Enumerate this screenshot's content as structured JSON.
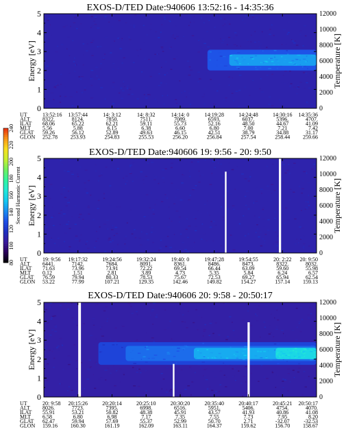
{
  "chart_data": [
    {
      "type": "heatmap",
      "title": "EXOS-D/TED   Date:940606  13:52:16 - 14:35:36",
      "ylabel": "Energy [eV]",
      "ylabel_right": "Temperature [K]",
      "ylim": [
        0,
        5
      ],
      "yticks": [
        "0",
        "1",
        "2",
        "3",
        "4",
        "5"
      ],
      "ylim_right": [
        0,
        12000
      ],
      "yticks_right": [
        "0",
        "2000",
        "4000",
        "6000",
        "8000",
        "10000",
        "12000"
      ],
      "background_level": 110,
      "gaps": [],
      "features": [
        {
          "t0": 0.6,
          "t1": 1.0,
          "e0": 2.0,
          "e1": 3.1,
          "level": 130
        },
        {
          "t0": 0.68,
          "t1": 1.0,
          "e0": 2.25,
          "e1": 2.85,
          "level": 145
        }
      ],
      "table": {
        "labels": [
          "UT",
          "ALT",
          "ILAT",
          "MLT",
          "GLAT",
          "GLON"
        ],
        "columns": [
          [
            "13:52:16",
            "8322.",
            "68.06",
            "5.56",
            "59.26",
            "252.78"
          ],
          [
            "13:57:44",
            "8124.",
            "65.22",
            "5.88",
            "56.12",
            "253.93"
          ],
          [
            "14: 3:12",
            "7850.",
            "62.21",
            "6.15",
            "52.89",
            "254.83"
          ],
          [
            "14: 8:32",
            "7511.",
            "59.11",
            "6.38",
            "49.63",
            "255.53"
          ],
          [
            "14:14: 0",
            "7089.",
            "55.73",
            "6.60",
            "46.15",
            "256.20"
          ],
          [
            "14:19:28",
            "6593.",
            "52.16",
            "6.80",
            "42.51",
            "256.84"
          ],
          [
            "14:24:48",
            "6037.",
            "48.50",
            "7.00",
            "38.79",
            "257.54"
          ],
          [
            "14:30:16",
            "5396.",
            "44.67",
            "7.21",
            "34.88",
            "258.44"
          ],
          [
            "14:35:36",
            "4707.",
            "41.09",
            "7.42",
            "31.17",
            "259.66"
          ]
        ]
      }
    },
    {
      "type": "heatmap",
      "title": "EXOS-D/TED   Date:940606  19: 9:56 - 20: 9:50",
      "ylabel": "Energy [eV]",
      "ylabel_right": "Temperature [K]",
      "ylim": [
        0,
        5
      ],
      "yticks": [
        "0",
        "1",
        "2",
        "3",
        "4",
        "5"
      ],
      "ylim_right": [
        0,
        12000
      ],
      "yticks_right": [
        "0",
        "2000",
        "4000",
        "6000",
        "8000",
        "10000",
        "12000"
      ],
      "background_level": 110,
      "gaps": [
        {
          "t": 0.664,
          "e_top": 4.3,
          "w": 0.006
        },
        {
          "t": 0.862,
          "e_top": 5.0,
          "w": 0.008
        }
      ],
      "features": [],
      "table": {
        "labels": [
          "UT",
          "ALT",
          "ILAT",
          "MLT",
          "GLAT",
          "GLON"
        ],
        "columns": [
          [
            "19: 9:56",
            "6441.",
            "71.63",
            "0.12",
            "76.59",
            "53.22"
          ],
          [
            "19:17:32",
            "7142.",
            "73.96",
            "1.51",
            "79.94",
            "77.99"
          ],
          [
            "19:24:56",
            "7684.",
            "73.91",
            "2.81",
            "80.33",
            "107.21"
          ],
          [
            "19:32:24",
            "8091.",
            "72.22",
            "3.89",
            "78.53",
            "129.35"
          ],
          [
            "19:40: 0",
            "8361.",
            "69.54",
            "4.73",
            "75.67",
            "142.46"
          ],
          [
            "19:47:28",
            "8486.",
            "66.44",
            "5.35",
            "72.53",
            "149.82"
          ],
          [
            "19:54:55",
            "8473.",
            "63.09",
            "5.84",
            "69.27",
            "154.27"
          ],
          [
            "20: 2:22",
            "8322.",
            "59.60",
            "6.24",
            "65.94",
            "157.14"
          ],
          [
            "20: 9:50",
            "8032.",
            "55.98",
            "6.57",
            "62.54",
            "159.13"
          ]
        ]
      }
    },
    {
      "type": "heatmap",
      "title": "EXOS-D/TED   Date:940606  20: 9:58 - 20:50:17",
      "ylabel": "Energy [eV]",
      "ylabel_right": "Temperature [K]",
      "ylim": [
        0,
        5
      ],
      "yticks": [
        "0",
        "1",
        "2",
        "3",
        "4",
        "5"
      ],
      "ylim_right": [
        0,
        12000
      ],
      "yticks_right": [
        "0",
        "2000",
        "4000",
        "6000",
        "8000",
        "10000",
        "12000"
      ],
      "background_level": 108,
      "gaps": [
        {
          "t": 0.126,
          "e_top": 5.0,
          "w": 0.01
        },
        {
          "t": 0.473,
          "e_top": 1.75,
          "w": 0.006
        },
        {
          "t": 0.747,
          "e_top": 3.95,
          "w": 0.008
        }
      ],
      "features": [
        {
          "t0": 0.2,
          "t1": 1.0,
          "e0": 1.7,
          "e1": 2.9,
          "level": 125
        },
        {
          "t0": 0.3,
          "t1": 1.0,
          "e0": 1.9,
          "e1": 2.7,
          "level": 135
        },
        {
          "t0": 0.55,
          "t1": 1.0,
          "e0": 2.0,
          "e1": 2.6,
          "level": 148
        },
        {
          "t0": 0.85,
          "t1": 1.0,
          "e0": 2.0,
          "e1": 2.6,
          "level": 160
        }
      ],
      "table": {
        "labels": [
          "UT",
          "ALT",
          "ILAT",
          "MLT",
          "GLAT",
          "GLON"
        ],
        "columns": [
          [
            "20: 9:58",
            "8026.",
            "55.91",
            "6.58",
            "62.47",
            "159.16"
          ],
          [
            "20:15:26",
            "7723.",
            "53.21",
            "6.80",
            "59.94",
            "160.30"
          ],
          [
            "20:20:14",
            "7395.",
            "50.82",
            "6.98",
            "57.69",
            "161.19"
          ],
          [
            "20:25:10",
            "6998.",
            "48.38",
            "7.17",
            "55.37",
            "162.09"
          ],
          [
            "20:30:20",
            "6516.",
            "45.91",
            "7.35",
            "52.99",
            "163.11"
          ],
          [
            "20:35:40",
            "5951.",
            "43.57",
            "7.55",
            "50.70",
            "164.37"
          ],
          [
            "20:40:17",
            "5406.",
            "41.93",
            "7.73",
            "2.71",
            "159.62"
          ],
          [
            "20:45:21",
            "4754.",
            "40.86",
            "7.95",
            "-32.07",
            "156.70"
          ],
          [
            "20:50:17",
            "4070.",
            "41.08",
            "8.20",
            "-32.53",
            "158.67"
          ]
        ]
      }
    }
  ],
  "colorbar": {
    "label": "Second Harmonic Current",
    "ticks": [
      "80",
      "100",
      "120",
      "140",
      "160",
      "180",
      "200",
      "220",
      "240"
    ],
    "range": [
      80,
      240
    ],
    "colors": [
      "#000000",
      "#2a0058",
      "#3a1a9c",
      "#1f2fc0",
      "#1e4fe6",
      "#1a8cf0",
      "#14c8f0",
      "#22e8d8",
      "#30f5a0",
      "#6ef060",
      "#c8f030",
      "#f8e020",
      "#f89818",
      "#e83010"
    ]
  }
}
